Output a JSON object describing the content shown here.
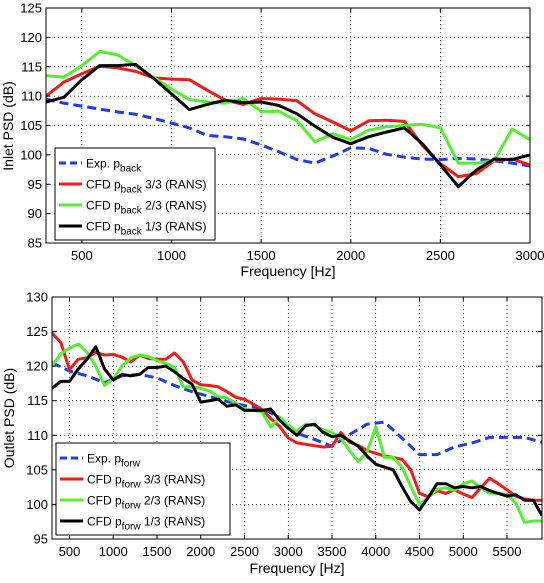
{
  "chart_data": [
    {
      "type": "line",
      "xlabel": "Frequency [Hz]",
      "ylabel": "Inlet PSD (dB)",
      "xlim": [
        300,
        3000
      ],
      "ylim": [
        85,
        125
      ],
      "xticks": [
        500,
        1000,
        1500,
        2000,
        2500,
        3000
      ],
      "xtick_labels": [
        "500",
        "1000",
        "1500",
        "2000",
        "2500",
        "3000"
      ],
      "yticks": [
        85,
        90,
        95,
        100,
        105,
        110,
        115,
        120,
        125
      ],
      "ytick_labels": [
        "85",
        "90",
        "95",
        "100",
        "105",
        "110",
        "115",
        "120",
        "125"
      ],
      "grid": true,
      "legend_position": "bottom-left",
      "series": [
        {
          "name": "Exp.",
          "sub": "back",
          "suffix": "",
          "color": "#1f3de0",
          "dash": "dashed",
          "x": [
            300,
            400,
            500,
            600,
            700,
            800,
            900,
            1000,
            1100,
            1200,
            1300,
            1400,
            1500,
            1600,
            1700,
            1800,
            1900,
            2000,
            2100,
            2200,
            2300,
            2400,
            2500,
            2600,
            2700,
            2800,
            2900,
            3000
          ],
          "y": [
            109.5,
            108.8,
            108.3,
            107.8,
            107.3,
            106.9,
            106.2,
            105.4,
            104.6,
            103.3,
            103.1,
            102.7,
            101.7,
            100.5,
            99.2,
            98.6,
            99.8,
            101.2,
            101.1,
            100.1,
            99.6,
            99.3,
            99.2,
            99.4,
            99.3,
            99.0,
            98.6,
            98.1
          ]
        },
        {
          "name": "CFD",
          "sub": "back",
          "suffix": " 3/3 (RANS)",
          "color": "#ee1c1c",
          "dash": "solid",
          "x": [
            300,
            400,
            500,
            600,
            700,
            800,
            900,
            1000,
            1100,
            1200,
            1300,
            1400,
            1500,
            1600,
            1700,
            1800,
            1900,
            2000,
            2100,
            2200,
            2300,
            2400,
            2500,
            2600,
            2700,
            2800,
            2900,
            3000
          ],
          "y": [
            110.0,
            112.4,
            113.8,
            115.1,
            114.8,
            114.2,
            113.1,
            112.9,
            112.8,
            111.0,
            109.3,
            108.6,
            109.6,
            109.5,
            109.2,
            107.0,
            105.6,
            104.1,
            105.8,
            105.9,
            105.7,
            101.6,
            98.5,
            96.3,
            96.8,
            99.0,
            99.3,
            98.3
          ]
        },
        {
          "name": "CFD",
          "sub": "back",
          "suffix": " 2/3 (RANS)",
          "color": "#55ee33",
          "dash": "solid",
          "x": [
            300,
            400,
            500,
            600,
            700,
            800,
            900,
            1000,
            1100,
            1200,
            1300,
            1400,
            1500,
            1600,
            1700,
            1800,
            1900,
            2000,
            2100,
            2200,
            2300,
            2400,
            2500,
            2600,
            2700,
            2800,
            2900,
            3000
          ],
          "y": [
            113.5,
            113.2,
            115.2,
            117.6,
            117.0,
            115.2,
            113.2,
            111.2,
            109.4,
            109.0,
            108.8,
            109.6,
            107.4,
            107.4,
            105.8,
            102.2,
            103.6,
            102.6,
            104.2,
            104.8,
            105.0,
            105.2,
            104.6,
            98.6,
            98.6,
            99.0,
            104.4,
            102.6
          ]
        },
        {
          "name": "CFD",
          "sub": "back",
          "suffix": " 1/3 (RANS)",
          "color": "#000000",
          "dash": "solid",
          "x": [
            300,
            400,
            500,
            600,
            700,
            800,
            900,
            1000,
            1100,
            1200,
            1300,
            1400,
            1500,
            1600,
            1700,
            1800,
            1900,
            2000,
            2100,
            2200,
            2300,
            2400,
            2500,
            2600,
            2700,
            2800,
            2900,
            3000
          ],
          "y": [
            109.0,
            109.8,
            112.8,
            115.2,
            115.2,
            115.4,
            113.0,
            110.4,
            107.7,
            108.6,
            109.3,
            108.9,
            109.0,
            108.4,
            107.0,
            104.9,
            103.0,
            101.9,
            103.1,
            103.9,
            104.6,
            101.9,
            98.3,
            94.6,
            97.4,
            99.3,
            99.2,
            100.0
          ]
        }
      ]
    },
    {
      "type": "line",
      "xlabel": "Frequency [Hz]",
      "ylabel": "Outlet PSD (dB)",
      "xlim": [
        300,
        5900
      ],
      "ylim": [
        95,
        130
      ],
      "xticks": [
        500,
        1000,
        1500,
        2000,
        2500,
        3000,
        3500,
        4000,
        4500,
        5000,
        5500
      ],
      "xtick_labels": [
        "500",
        "1000",
        "1500",
        "2000",
        "2500",
        "3000",
        "3500",
        "4000",
        "4500",
        "5000",
        "5500"
      ],
      "yticks": [
        95,
        100,
        105,
        110,
        115,
        120,
        125,
        130
      ],
      "ytick_labels": [
        "95",
        "100",
        "105",
        "110",
        "115",
        "120",
        "125",
        "130"
      ],
      "grid": true,
      "legend_position": "bottom-left",
      "series": [
        {
          "name": "Exp.",
          "sub": "forw",
          "suffix": "",
          "color": "#1f3de0",
          "dash": "dashed",
          "x": [
            300,
            500,
            700,
            900,
            1100,
            1300,
            1500,
            1700,
            1900,
            2100,
            2300,
            2500,
            2700,
            2900,
            3100,
            3300,
            3500,
            3700,
            3900,
            4100,
            4300,
            4500,
            4700,
            4900,
            5100,
            5300,
            5500,
            5700,
            5900
          ],
          "y": [
            120.5,
            119.3,
            118.6,
            117.6,
            118.6,
            118.8,
            118.3,
            117.2,
            116.3,
            115.6,
            114.9,
            114.3,
            113.9,
            112.6,
            110.3,
            109.4,
            108.4,
            110.1,
            111.6,
            111.9,
            109.6,
            107.2,
            107.2,
            108.3,
            108.9,
            109.7,
            109.7,
            109.7,
            109.0
          ]
        },
        {
          "name": "CFD",
          "sub": "forw",
          "suffix": " 3/3 (RANS)",
          "color": "#ee1c1c",
          "dash": "solid",
          "x": [
            300,
            400,
            500,
            600,
            700,
            800,
            900,
            1000,
            1100,
            1200,
            1300,
            1400,
            1500,
            1600,
            1700,
            1800,
            1900,
            2000,
            2100,
            2200,
            2300,
            2400,
            2500,
            2600,
            2700,
            2800,
            2900,
            3000,
            3100,
            3200,
            3300,
            3400,
            3500,
            3600,
            3700,
            3800,
            3900,
            4000,
            4100,
            4200,
            4300,
            4400,
            4500,
            4600,
            4700,
            4800,
            4900,
            5000,
            5100,
            5200,
            5300,
            5400,
            5500,
            5600,
            5700,
            5800,
            5900
          ],
          "y": [
            124.8,
            123.4,
            119.5,
            121.0,
            121.2,
            122.0,
            121.6,
            121.7,
            121.3,
            120.6,
            121.6,
            121.1,
            121.0,
            121.0,
            121.9,
            120.6,
            118.0,
            117.3,
            117.2,
            117.0,
            116.3,
            115.5,
            115.2,
            114.5,
            113.7,
            112.4,
            111.3,
            109.6,
            108.9,
            108.7,
            108.5,
            108.3,
            108.4,
            110.4,
            109.0,
            108.5,
            107.8,
            107.4,
            107.0,
            106.8,
            106.5,
            105.0,
            101.6,
            101.1,
            102.0,
            101.6,
            102.1,
            101.5,
            101.0,
            102.4,
            103.8,
            103.0,
            102.1,
            101.2,
            100.8,
            100.6,
            100.6
          ]
        },
        {
          "name": "CFD",
          "sub": "forw",
          "suffix": " 2/3 (RANS)",
          "color": "#55ee33",
          "dash": "solid",
          "x": [
            300,
            400,
            500,
            600,
            700,
            800,
            900,
            1000,
            1100,
            1200,
            1300,
            1400,
            1500,
            1600,
            1700,
            1800,
            1900,
            2000,
            2100,
            2200,
            2300,
            2400,
            2500,
            2600,
            2700,
            2800,
            2900,
            3000,
            3100,
            3200,
            3300,
            3400,
            3500,
            3600,
            3700,
            3800,
            3900,
            4000,
            4100,
            4200,
            4300,
            4400,
            4500,
            4600,
            4700,
            4800,
            4900,
            5000,
            5100,
            5200,
            5300,
            5400,
            5500,
            5600,
            5700,
            5800,
            5900
          ],
          "y": [
            120.0,
            121.8,
            122.6,
            123.2,
            122.0,
            120.0,
            117.2,
            118.2,
            120.0,
            121.2,
            121.6,
            121.4,
            120.8,
            120.4,
            119.8,
            117.0,
            117.0,
            116.8,
            116.4,
            115.6,
            115.4,
            114.6,
            113.8,
            113.6,
            113.4,
            111.2,
            112.6,
            111.4,
            110.6,
            111.6,
            111.4,
            110.8,
            110.4,
            109.6,
            107.8,
            106.2,
            107.6,
            111.2,
            106.8,
            106.8,
            105.4,
            102.6,
            100.0,
            101.0,
            102.2,
            102.4,
            102.0,
            103.0,
            103.4,
            102.4,
            101.6,
            101.6,
            101.4,
            100.2,
            97.4,
            97.6,
            97.6
          ]
        },
        {
          "name": "CFD",
          "sub": "forw",
          "suffix": " 1/3 (RANS)",
          "color": "#000000",
          "dash": "solid",
          "x": [
            300,
            400,
            500,
            600,
            700,
            800,
            900,
            1000,
            1100,
            1200,
            1300,
            1400,
            1500,
            1600,
            1700,
            1800,
            1900,
            2000,
            2100,
            2200,
            2300,
            2400,
            2500,
            2600,
            2700,
            2800,
            2900,
            3000,
            3100,
            3200,
            3300,
            3400,
            3500,
            3600,
            3700,
            3800,
            3900,
            4000,
            4100,
            4200,
            4300,
            4400,
            4500,
            4600,
            4700,
            4800,
            4900,
            5000,
            5100,
            5200,
            5300,
            5400,
            5500,
            5600,
            5700,
            5800,
            5900
          ],
          "y": [
            116.8,
            117.8,
            117.8,
            119.6,
            121.0,
            122.8,
            119.6,
            118.0,
            118.8,
            118.6,
            118.8,
            119.8,
            119.8,
            120.0,
            119.2,
            118.2,
            117.4,
            114.8,
            115.0,
            115.2,
            114.2,
            114.4,
            113.6,
            113.6,
            113.6,
            113.8,
            112.2,
            111.0,
            110.0,
            111.4,
            111.6,
            110.4,
            109.8,
            110.0,
            109.2,
            108.4,
            107.0,
            105.8,
            105.4,
            105.0,
            102.6,
            100.4,
            99.2,
            101.0,
            103.0,
            103.0,
            102.4,
            102.6,
            102.4,
            102.6,
            102.0,
            101.6,
            101.2,
            101.4,
            100.6,
            100.6,
            98.4
          ]
        }
      ]
    }
  ]
}
